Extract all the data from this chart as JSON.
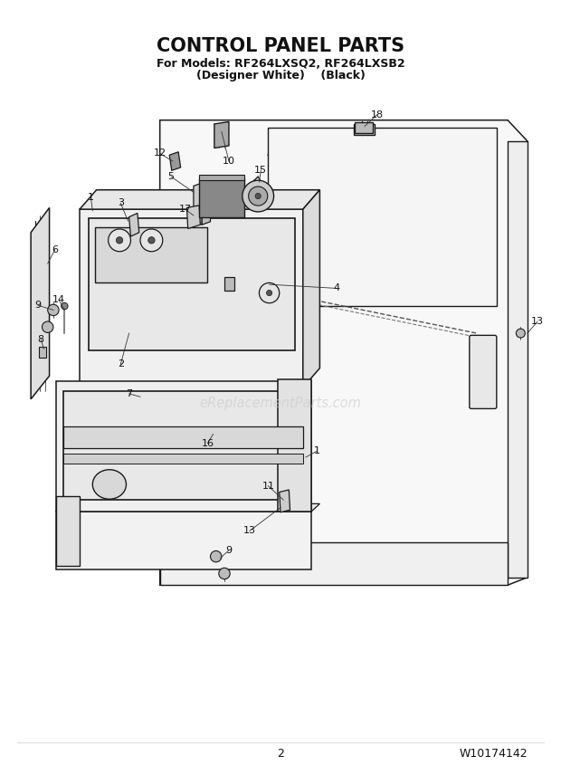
{
  "title": "CONTROL PANEL PARTS",
  "subtitle1": "For Models: RF264LXSQ2, RF264LXSB2",
  "subtitle2": "(Designer White)    (Black)",
  "page_number": "2",
  "part_number": "W10174142",
  "watermark": "eReplacementParts.com",
  "background_color": "#ffffff",
  "line_color": "#1a1a1a",
  "title_fontsize": 15,
  "subtitle_fontsize": 9,
  "footer_fontsize": 9,
  "fig_width": 6.2,
  "fig_height": 8.56,
  "dpi": 100
}
